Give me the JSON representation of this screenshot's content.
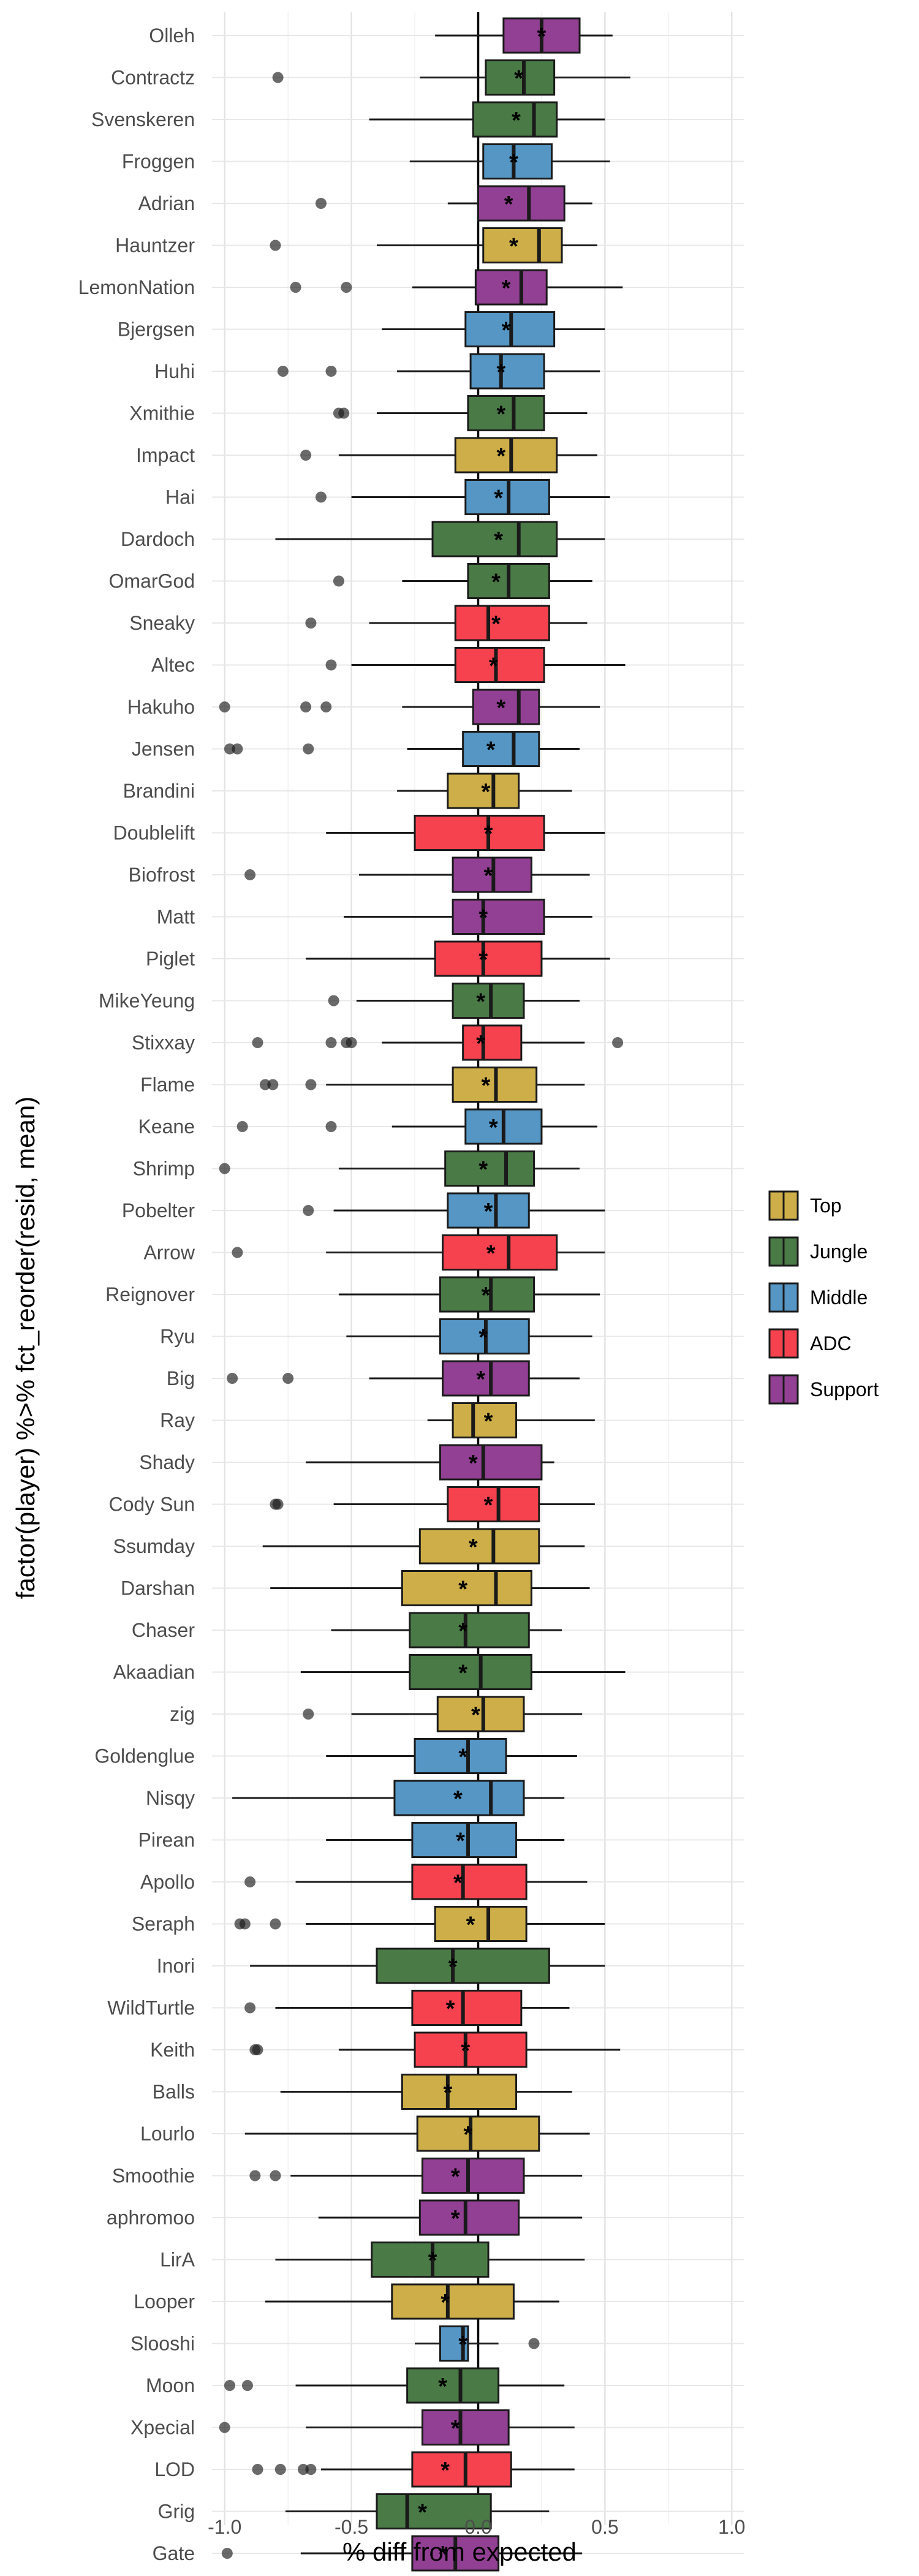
{
  "chart_data": {
    "type": "boxplot",
    "xlabel": "% diff from expected",
    "ylabel": "factor(player) %>% fct_reorder(resid, mean)",
    "xlim": [
      -1.05,
      1.05
    ],
    "x_ticks": [
      -1.0,
      -0.5,
      0.0,
      0.5,
      1.0
    ],
    "x_tick_labels": [
      "-1.0",
      "-0.5",
      "0.0",
      "0.5",
      "1.0"
    ],
    "reference_line_x": 0,
    "grid": true,
    "legend_position": "right",
    "legend": [
      {
        "name": "Top",
        "color": "#CDAE48"
      },
      {
        "name": "Jungle",
        "color": "#4A7A46"
      },
      {
        "name": "Middle",
        "color": "#5596C4"
      },
      {
        "name": "ADC",
        "color": "#F6424F"
      },
      {
        "name": "Support",
        "color": "#924093"
      }
    ],
    "players": [
      {
        "name": "Olleh",
        "role": "Support",
        "whisker_low": -0.17,
        "q1": 0.1,
        "median": 0.25,
        "q3": 0.4,
        "whisker_high": 0.53,
        "mean": 0.25,
        "outliers": []
      },
      {
        "name": "Contractz",
        "role": "Jungle",
        "whisker_low": -0.23,
        "q1": 0.03,
        "median": 0.18,
        "q3": 0.3,
        "whisker_high": 0.6,
        "mean": 0.16,
        "outliers": [
          -0.79
        ]
      },
      {
        "name": "Svenskeren",
        "role": "Jungle",
        "whisker_low": -0.43,
        "q1": -0.02,
        "median": 0.22,
        "q3": 0.31,
        "whisker_high": 0.5,
        "mean": 0.15,
        "outliers": []
      },
      {
        "name": "Froggen",
        "role": "Middle",
        "whisker_low": -0.27,
        "q1": 0.02,
        "median": 0.14,
        "q3": 0.29,
        "whisker_high": 0.52,
        "mean": 0.14,
        "outliers": []
      },
      {
        "name": "Adrian",
        "role": "Support",
        "whisker_low": -0.12,
        "q1": 0.0,
        "median": 0.2,
        "q3": 0.34,
        "whisker_high": 0.45,
        "mean": 0.12,
        "outliers": [
          -0.62
        ]
      },
      {
        "name": "Hauntzer",
        "role": "Top",
        "whisker_low": -0.4,
        "q1": 0.02,
        "median": 0.24,
        "q3": 0.33,
        "whisker_high": 0.47,
        "mean": 0.14,
        "outliers": [
          -0.8
        ]
      },
      {
        "name": "LemonNation",
        "role": "Support",
        "whisker_low": -0.26,
        "q1": -0.01,
        "median": 0.17,
        "q3": 0.27,
        "whisker_high": 0.57,
        "mean": 0.11,
        "outliers": [
          -0.72,
          -0.52
        ]
      },
      {
        "name": "Bjergsen",
        "role": "Middle",
        "whisker_low": -0.38,
        "q1": -0.05,
        "median": 0.13,
        "q3": 0.3,
        "whisker_high": 0.5,
        "mean": 0.11,
        "outliers": []
      },
      {
        "name": "Huhi",
        "role": "Middle",
        "whisker_low": -0.32,
        "q1": -0.03,
        "median": 0.09,
        "q3": 0.26,
        "whisker_high": 0.48,
        "mean": 0.09,
        "outliers": [
          -0.77,
          -0.58
        ]
      },
      {
        "name": "Xmithie",
        "role": "Jungle",
        "whisker_low": -0.4,
        "q1": -0.04,
        "median": 0.14,
        "q3": 0.26,
        "whisker_high": 0.43,
        "mean": 0.09,
        "outliers": [
          -0.55,
          -0.53
        ]
      },
      {
        "name": "Impact",
        "role": "Top",
        "whisker_low": -0.55,
        "q1": -0.09,
        "median": 0.13,
        "q3": 0.31,
        "whisker_high": 0.47,
        "mean": 0.09,
        "outliers": [
          -0.68
        ]
      },
      {
        "name": "Hai",
        "role": "Middle",
        "whisker_low": -0.5,
        "q1": -0.05,
        "median": 0.12,
        "q3": 0.28,
        "whisker_high": 0.52,
        "mean": 0.08,
        "outliers": [
          -0.62
        ]
      },
      {
        "name": "Dardoch",
        "role": "Jungle",
        "whisker_low": -0.8,
        "q1": -0.18,
        "median": 0.16,
        "q3": 0.31,
        "whisker_high": 0.5,
        "mean": 0.08,
        "outliers": []
      },
      {
        "name": "OmarGod",
        "role": "Jungle",
        "whisker_low": -0.3,
        "q1": -0.04,
        "median": 0.12,
        "q3": 0.28,
        "whisker_high": 0.45,
        "mean": 0.07,
        "outliers": [
          -0.55
        ]
      },
      {
        "name": "Sneaky",
        "role": "ADC",
        "whisker_low": -0.43,
        "q1": -0.09,
        "median": 0.04,
        "q3": 0.28,
        "whisker_high": 0.43,
        "mean": 0.07,
        "outliers": [
          -0.66
        ]
      },
      {
        "name": "Altec",
        "role": "ADC",
        "whisker_low": -0.5,
        "q1": -0.09,
        "median": 0.07,
        "q3": 0.26,
        "whisker_high": 0.58,
        "mean": 0.06,
        "outliers": [
          -0.58
        ]
      },
      {
        "name": "Hakuho",
        "role": "Support",
        "whisker_low": -0.3,
        "q1": -0.02,
        "median": 0.16,
        "q3": 0.24,
        "whisker_high": 0.48,
        "mean": 0.09,
        "outliers": [
          -1.0,
          -0.68,
          -0.6
        ]
      },
      {
        "name": "Jensen",
        "role": "Middle",
        "whisker_low": -0.28,
        "q1": -0.06,
        "median": 0.14,
        "q3": 0.24,
        "whisker_high": 0.4,
        "mean": 0.05,
        "outliers": [
          -0.98,
          -0.95,
          -0.67
        ]
      },
      {
        "name": "Brandini",
        "role": "Top",
        "whisker_low": -0.32,
        "q1": -0.12,
        "median": 0.06,
        "q3": 0.16,
        "whisker_high": 0.37,
        "mean": 0.03,
        "outliers": []
      },
      {
        "name": "Doublelift",
        "role": "ADC",
        "whisker_low": -0.6,
        "q1": -0.25,
        "median": 0.04,
        "q3": 0.26,
        "whisker_high": 0.5,
        "mean": 0.04,
        "outliers": []
      },
      {
        "name": "Biofrost",
        "role": "Support",
        "whisker_low": -0.47,
        "q1": -0.1,
        "median": 0.06,
        "q3": 0.21,
        "whisker_high": 0.44,
        "mean": 0.04,
        "outliers": [
          -0.9
        ]
      },
      {
        "name": "Matt",
        "role": "Support",
        "whisker_low": -0.53,
        "q1": -0.1,
        "median": 0.02,
        "q3": 0.26,
        "whisker_high": 0.45,
        "mean": 0.02,
        "outliers": []
      },
      {
        "name": "Piglet",
        "role": "ADC",
        "whisker_low": -0.68,
        "q1": -0.17,
        "median": 0.02,
        "q3": 0.25,
        "whisker_high": 0.52,
        "mean": 0.02,
        "outliers": []
      },
      {
        "name": "MikeYeung",
        "role": "Jungle",
        "whisker_low": -0.48,
        "q1": -0.1,
        "median": 0.05,
        "q3": 0.18,
        "whisker_high": 0.4,
        "mean": 0.01,
        "outliers": [
          -0.57
        ]
      },
      {
        "name": "Stixxay",
        "role": "ADC",
        "whisker_low": -0.38,
        "q1": -0.06,
        "median": 0.02,
        "q3": 0.17,
        "whisker_high": 0.42,
        "mean": 0.01,
        "outliers": [
          -0.87,
          -0.58,
          -0.52,
          -0.5,
          0.55
        ]
      },
      {
        "name": "Flame",
        "role": "Top",
        "whisker_low": -0.6,
        "q1": -0.1,
        "median": 0.07,
        "q3": 0.23,
        "whisker_high": 0.42,
        "mean": 0.03,
        "outliers": [
          -0.84,
          -0.81,
          -0.66
        ]
      },
      {
        "name": "Keane",
        "role": "Middle",
        "whisker_low": -0.34,
        "q1": -0.05,
        "median": 0.1,
        "q3": 0.25,
        "whisker_high": 0.47,
        "mean": 0.06,
        "outliers": [
          -0.93,
          -0.58
        ]
      },
      {
        "name": "Shrimp",
        "role": "Jungle",
        "whisker_low": -0.55,
        "q1": -0.13,
        "median": 0.11,
        "q3": 0.22,
        "whisker_high": 0.4,
        "mean": 0.02,
        "outliers": [
          -1.0
        ]
      },
      {
        "name": "Pobelter",
        "role": "Middle",
        "whisker_low": -0.57,
        "q1": -0.12,
        "median": 0.07,
        "q3": 0.2,
        "whisker_high": 0.5,
        "mean": 0.04,
        "outliers": [
          -0.67
        ]
      },
      {
        "name": "Arrow",
        "role": "ADC",
        "whisker_low": -0.6,
        "q1": -0.14,
        "median": 0.12,
        "q3": 0.31,
        "whisker_high": 0.5,
        "mean": 0.05,
        "outliers": [
          -0.95
        ]
      },
      {
        "name": "Reignover",
        "role": "Jungle",
        "whisker_low": -0.55,
        "q1": -0.15,
        "median": 0.05,
        "q3": 0.22,
        "whisker_high": 0.48,
        "mean": 0.03,
        "outliers": []
      },
      {
        "name": "Ryu",
        "role": "Middle",
        "whisker_low": -0.52,
        "q1": -0.15,
        "median": 0.03,
        "q3": 0.2,
        "whisker_high": 0.45,
        "mean": 0.02,
        "outliers": []
      },
      {
        "name": "Big",
        "role": "Support",
        "whisker_low": -0.43,
        "q1": -0.14,
        "median": 0.05,
        "q3": 0.2,
        "whisker_high": 0.4,
        "mean": 0.01,
        "outliers": [
          -0.97,
          -0.75
        ]
      },
      {
        "name": "Ray",
        "role": "Top",
        "whisker_low": -0.2,
        "q1": -0.1,
        "median": -0.02,
        "q3": 0.15,
        "whisker_high": 0.46,
        "mean": 0.04,
        "outliers": []
      },
      {
        "name": "Shady",
        "role": "Support",
        "whisker_low": -0.68,
        "q1": -0.15,
        "median": 0.02,
        "q3": 0.25,
        "whisker_high": 0.3,
        "mean": -0.02,
        "outliers": []
      },
      {
        "name": "Cody Sun",
        "role": "ADC",
        "whisker_low": -0.57,
        "q1": -0.12,
        "median": 0.08,
        "q3": 0.24,
        "whisker_high": 0.46,
        "mean": 0.04,
        "outliers": [
          -0.8,
          -0.79
        ]
      },
      {
        "name": "Ssumday",
        "role": "Top",
        "whisker_low": -0.85,
        "q1": -0.23,
        "median": 0.06,
        "q3": 0.24,
        "whisker_high": 0.42,
        "mean": -0.02,
        "outliers": []
      },
      {
        "name": "Darshan",
        "role": "Top",
        "whisker_low": -0.82,
        "q1": -0.3,
        "median": 0.07,
        "q3": 0.21,
        "whisker_high": 0.44,
        "mean": -0.06,
        "outliers": []
      },
      {
        "name": "Chaser",
        "role": "Jungle",
        "whisker_low": -0.58,
        "q1": -0.27,
        "median": -0.05,
        "q3": 0.2,
        "whisker_high": 0.33,
        "mean": -0.06,
        "outliers": []
      },
      {
        "name": "Akaadian",
        "role": "Jungle",
        "whisker_low": -0.7,
        "q1": -0.27,
        "median": 0.01,
        "q3": 0.21,
        "whisker_high": 0.58,
        "mean": -0.06,
        "outliers": []
      },
      {
        "name": "zig",
        "role": "Top",
        "whisker_low": -0.5,
        "q1": -0.16,
        "median": 0.02,
        "q3": 0.18,
        "whisker_high": 0.41,
        "mean": -0.01,
        "outliers": [
          -0.67
        ]
      },
      {
        "name": "Goldenglue",
        "role": "Middle",
        "whisker_low": -0.6,
        "q1": -0.25,
        "median": -0.04,
        "q3": 0.11,
        "whisker_high": 0.39,
        "mean": -0.06,
        "outliers": []
      },
      {
        "name": "Nisqy",
        "role": "Middle",
        "whisker_low": -0.97,
        "q1": -0.33,
        "median": 0.05,
        "q3": 0.18,
        "whisker_high": 0.34,
        "mean": -0.08,
        "outliers": []
      },
      {
        "name": "Pirean",
        "role": "Middle",
        "whisker_low": -0.6,
        "q1": -0.26,
        "median": -0.04,
        "q3": 0.15,
        "whisker_high": 0.34,
        "mean": -0.07,
        "outliers": []
      },
      {
        "name": "Apollo",
        "role": "ADC",
        "whisker_low": -0.72,
        "q1": -0.26,
        "median": -0.06,
        "q3": 0.19,
        "whisker_high": 0.43,
        "mean": -0.08,
        "outliers": [
          -0.9
        ]
      },
      {
        "name": "Seraph",
        "role": "Top",
        "whisker_low": -0.68,
        "q1": -0.17,
        "median": 0.04,
        "q3": 0.19,
        "whisker_high": 0.5,
        "mean": -0.03,
        "outliers": [
          -0.94,
          -0.92,
          -0.8
        ]
      },
      {
        "name": "Inori",
        "role": "Jungle",
        "whisker_low": -0.9,
        "q1": -0.4,
        "median": -0.1,
        "q3": 0.28,
        "whisker_high": 0.5,
        "mean": -0.1,
        "outliers": []
      },
      {
        "name": "WildTurtle",
        "role": "ADC",
        "whisker_low": -0.8,
        "q1": -0.26,
        "median": -0.06,
        "q3": 0.17,
        "whisker_high": 0.36,
        "mean": -0.11,
        "outliers": [
          -0.9
        ]
      },
      {
        "name": "Keith",
        "role": "ADC",
        "whisker_low": -0.55,
        "q1": -0.25,
        "median": -0.05,
        "q3": 0.19,
        "whisker_high": 0.56,
        "mean": -0.05,
        "outliers": [
          -0.88,
          -0.87
        ]
      },
      {
        "name": "Balls",
        "role": "Top",
        "whisker_low": -0.78,
        "q1": -0.3,
        "median": -0.12,
        "q3": 0.15,
        "whisker_high": 0.37,
        "mean": -0.12,
        "outliers": []
      },
      {
        "name": "Lourlo",
        "role": "Top",
        "whisker_low": -0.92,
        "q1": -0.24,
        "median": -0.03,
        "q3": 0.24,
        "whisker_high": 0.44,
        "mean": -0.04,
        "outliers": []
      },
      {
        "name": "Smoothie",
        "role": "Support",
        "whisker_low": -0.74,
        "q1": -0.22,
        "median": -0.04,
        "q3": 0.18,
        "whisker_high": 0.41,
        "mean": -0.09,
        "outliers": [
          -0.88,
          -0.8
        ]
      },
      {
        "name": "aphromoo",
        "role": "Support",
        "whisker_low": -0.63,
        "q1": -0.23,
        "median": -0.05,
        "q3": 0.16,
        "whisker_high": 0.41,
        "mean": -0.09,
        "outliers": []
      },
      {
        "name": "LirA",
        "role": "Jungle",
        "whisker_low": -0.8,
        "q1": -0.42,
        "median": -0.18,
        "q3": 0.04,
        "whisker_high": 0.42,
        "mean": -0.18,
        "outliers": []
      },
      {
        "name": "Looper",
        "role": "Top",
        "whisker_low": -0.84,
        "q1": -0.34,
        "median": -0.12,
        "q3": 0.14,
        "whisker_high": 0.32,
        "mean": -0.13,
        "outliers": []
      },
      {
        "name": "Slooshi",
        "role": "Middle",
        "whisker_low": -0.25,
        "q1": -0.15,
        "median": -0.06,
        "q3": -0.04,
        "whisker_high": 0.08,
        "mean": -0.06,
        "outliers": [
          0.22
        ]
      },
      {
        "name": "Moon",
        "role": "Jungle",
        "whisker_low": -0.72,
        "q1": -0.28,
        "median": -0.07,
        "q3": 0.08,
        "whisker_high": 0.34,
        "mean": -0.14,
        "outliers": [
          -0.98,
          -0.91
        ]
      },
      {
        "name": "Xpecial",
        "role": "Support",
        "whisker_low": -0.68,
        "q1": -0.22,
        "median": -0.07,
        "q3": 0.12,
        "whisker_high": 0.38,
        "mean": -0.09,
        "outliers": [
          -1.0
        ]
      },
      {
        "name": "LOD",
        "role": "ADC",
        "whisker_low": -0.62,
        "q1": -0.26,
        "median": -0.05,
        "q3": 0.13,
        "whisker_high": 0.38,
        "mean": -0.13,
        "outliers": [
          -0.87,
          -0.78,
          -0.69,
          -0.66
        ]
      },
      {
        "name": "Grig",
        "role": "Jungle",
        "whisker_low": -0.76,
        "q1": -0.4,
        "median": -0.28,
        "q3": 0.05,
        "whisker_high": 0.28,
        "mean": -0.22,
        "outliers": []
      },
      {
        "name": "Gate",
        "role": "Support",
        "whisker_low": -0.7,
        "q1": -0.26,
        "median": -0.09,
        "q3": 0.08,
        "whisker_high": 0.41,
        "mean": -0.14,
        "outliers": [
          -0.99
        ]
      }
    ]
  }
}
